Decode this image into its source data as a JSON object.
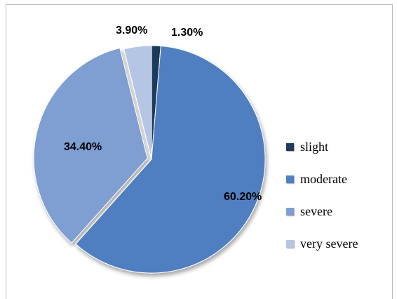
{
  "chart_data": {
    "type": "pie",
    "categories": [
      "slight",
      "moderate",
      "severe",
      "very severe"
    ],
    "values": [
      1.3,
      60.2,
      34.4,
      3.9
    ],
    "value_labels": [
      "1.30%",
      "60.20%",
      "34.40%",
      "3.90%"
    ],
    "colors": [
      "#1f3b5c",
      "#4f7fc0",
      "#7f9ed2",
      "#b4c6e4"
    ],
    "legend_position": "right",
    "title": ""
  }
}
